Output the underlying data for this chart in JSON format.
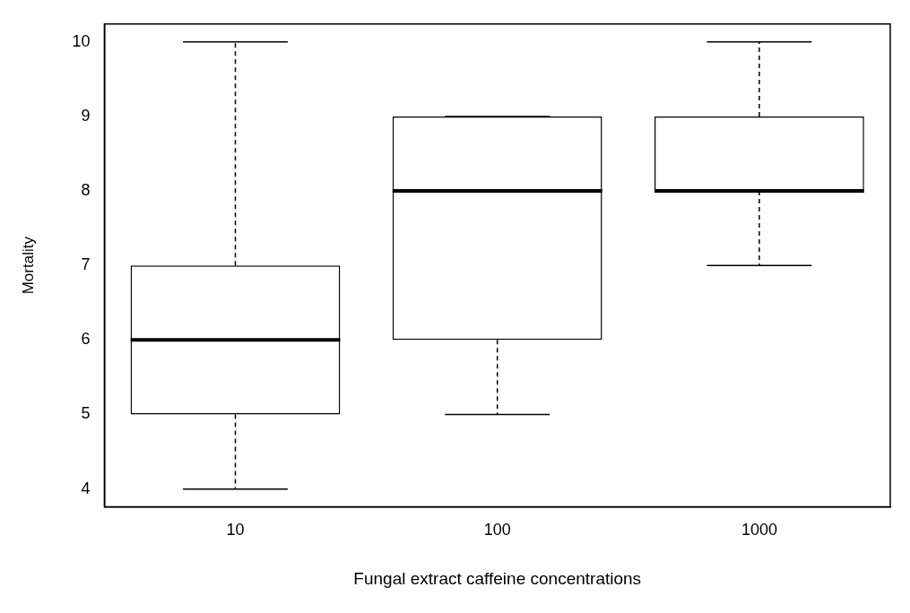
{
  "chart_data": {
    "type": "box",
    "xlabel": "Fungal extract caffeine concentrations",
    "ylabel": "Mortality",
    "categories": [
      "10",
      "100",
      "1000"
    ],
    "boxes": [
      {
        "low": 4,
        "q1": 5,
        "median": 6,
        "q3": 7,
        "high": 10
      },
      {
        "low": 5,
        "q1": 6,
        "median": 8,
        "q3": 9,
        "high": 9
      },
      {
        "low": 7,
        "q1": 8,
        "median": 8,
        "q3": 9,
        "high": 10
      }
    ],
    "ylim": [
      3.76,
      10.24
    ],
    "yticks": [
      4,
      5,
      6,
      7,
      8,
      9,
      10
    ],
    "grid": false,
    "legend": false
  }
}
